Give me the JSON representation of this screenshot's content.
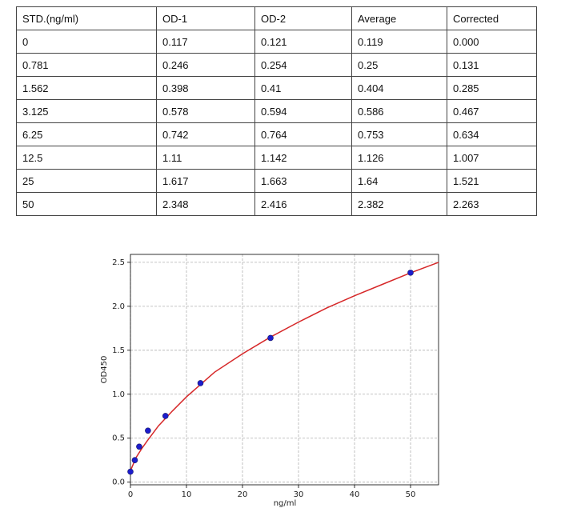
{
  "table": {
    "rows": [
      [
        "STD.(ng/ml)",
        "OD-1",
        "OD-2",
        "Average",
        "Corrected"
      ],
      [
        "0",
        "0.117",
        "0.121",
        "0.119",
        "0.000"
      ],
      [
        "0.781",
        "0.246",
        "0.254",
        "0.25",
        "0.131"
      ],
      [
        "1.562",
        "0.398",
        "0.41",
        "0.404",
        "0.285"
      ],
      [
        "3.125",
        "0.578",
        "0.594",
        "0.586",
        "0.467"
      ],
      [
        "6.25",
        "0.742",
        "0.764",
        "0.753",
        "0.634"
      ],
      [
        "12.5",
        "1.11",
        "1.142",
        "1.126",
        "1.007"
      ],
      [
        "25",
        "1.617",
        "1.663",
        "1.64",
        "1.521"
      ],
      [
        "50",
        "2.348",
        "2.416",
        "2.382",
        "2.263"
      ]
    ]
  },
  "chart_data": {
    "type": "scatter",
    "x_label": "ng/ml",
    "y_label": "OD450",
    "xlim": [
      0,
      55
    ],
    "ylim": [
      -0.03,
      2.59
    ],
    "xticks": [
      0,
      10,
      20,
      30,
      40,
      50
    ],
    "yticks": [
      {
        "value": 0,
        "label": "0.0"
      },
      0.5,
      {
        "value": 1,
        "label": "1.0"
      },
      1.5,
      {
        "value": 2,
        "label": "2.0"
      },
      2.5
    ],
    "grid": true,
    "series": [
      {
        "type": "line",
        "color": "#d62728",
        "x": [
          0,
          1,
          2,
          3,
          5,
          7.5,
          10,
          15,
          20,
          25,
          30,
          35,
          40,
          45,
          50,
          55
        ],
        "values": [
          0.13,
          0.28,
          0.38,
          0.47,
          0.64,
          0.81,
          0.97,
          1.25,
          1.46,
          1.65,
          1.82,
          1.98,
          2.12,
          2.25,
          2.38,
          2.5
        ]
      },
      {
        "type": "scatter",
        "color": "#1c1ccc",
        "x": [
          0,
          0.781,
          1.562,
          3.125,
          6.25,
          12.5,
          25,
          50
        ],
        "values": [
          0.119,
          0.25,
          0.404,
          0.586,
          0.753,
          1.126,
          1.64,
          2.382
        ]
      }
    ]
  }
}
